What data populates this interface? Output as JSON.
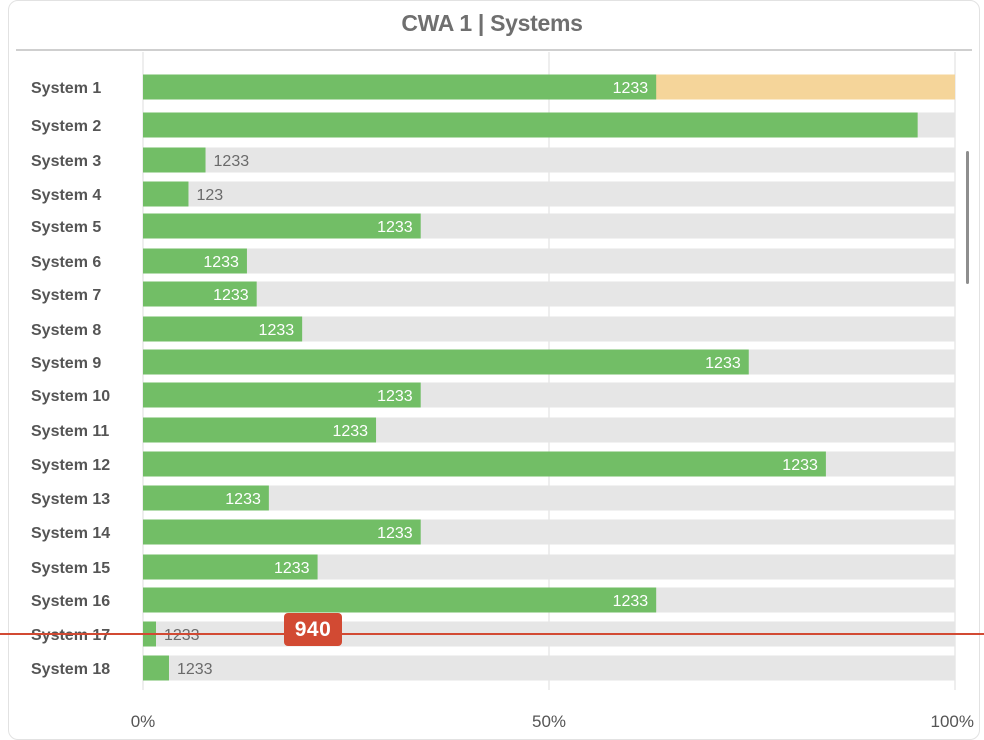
{
  "chart_data": {
    "type": "bar",
    "orientation": "horizontal",
    "title": "CWA 1 | Systems",
    "xlim": [
      0,
      100
    ],
    "x_ticks": [
      "0%",
      "50%",
      "100%"
    ],
    "grid": true,
    "categories": [
      "System 1",
      "System 2",
      "System 3",
      "System 4",
      "System 5",
      "System 6",
      "System 7",
      "System 8",
      "System 9",
      "System 10",
      "System 11",
      "System 12",
      "System 13",
      "System 14",
      "System 15",
      "System 16",
      "System 17",
      "System 18"
    ],
    "values": [
      63.2,
      95.4,
      7.7,
      5.6,
      34.2,
      12.8,
      14.0,
      19.6,
      74.6,
      34.2,
      28.7,
      84.1,
      15.5,
      34.2,
      21.5,
      63.2,
      1.6,
      3.2
    ],
    "value_labels": [
      "1233",
      "",
      "1233",
      "123",
      "1233",
      "1233",
      "1233",
      "1233",
      "1233",
      "1233",
      "1233",
      "1233",
      "1233",
      "1233",
      "1233",
      "1233",
      "1233",
      "1233"
    ],
    "label_inside": [
      true,
      false,
      false,
      false,
      true,
      true,
      true,
      true,
      true,
      true,
      true,
      true,
      true,
      true,
      true,
      true,
      false,
      false
    ],
    "remainder_colors": [
      "#f5d59a",
      "#e6e6e6",
      "#e6e6e6",
      "#e6e6e6",
      "#e6e6e6",
      "#e6e6e6",
      "#e6e6e6",
      "#e6e6e6",
      "#e6e6e6",
      "#e6e6e6",
      "#e6e6e6",
      "#e6e6e6",
      "#e6e6e6",
      "#e6e6e6",
      "#e6e6e6",
      "#e6e6e6",
      "#e6e6e6",
      "#e6e6e6"
    ],
    "bar_color": "#72be66",
    "track_color": "#e6e6e6",
    "marker": {
      "label": "940",
      "color": "#d24a33",
      "line_row": 16
    }
  }
}
